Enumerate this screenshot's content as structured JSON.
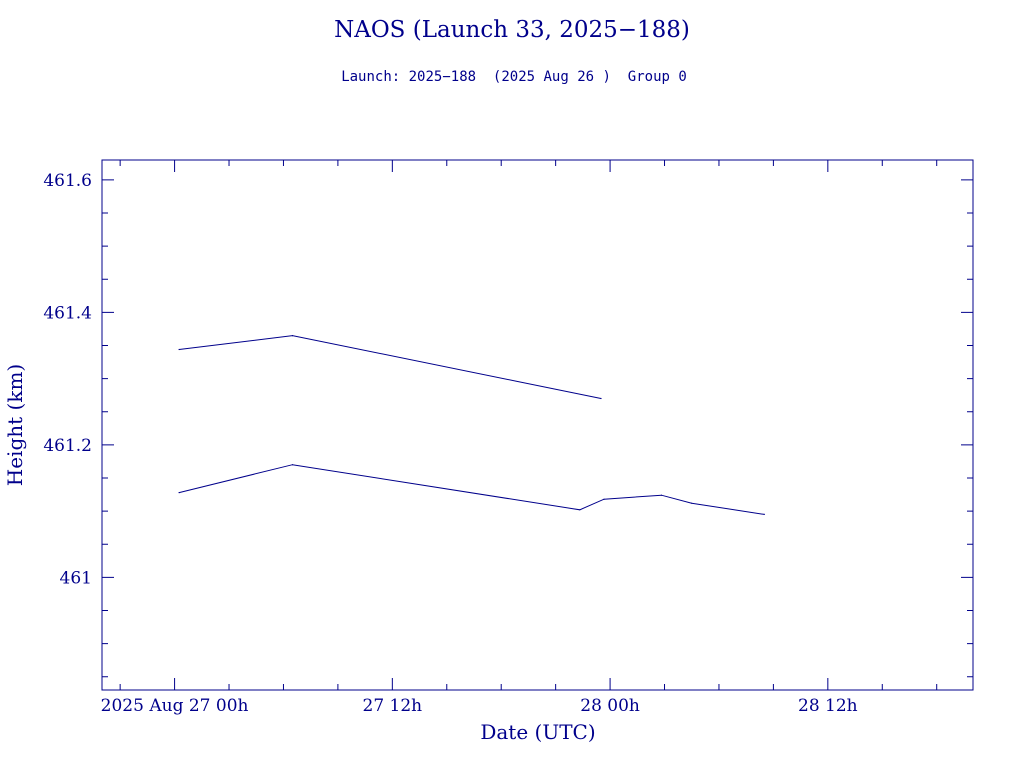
{
  "chart_data": {
    "type": "line",
    "title": "NAOS (Launch 33, 2025−188)",
    "subtitle": "Launch: 2025−188  (2025 Aug 26 )  Group 0",
    "xlabel": "Date (UTC)",
    "ylabel": "Height (km)",
    "x_unit": "UTC datetime",
    "xlim": [
      "2025-08-26T20:00",
      "2025-08-28T20:00"
    ],
    "ylim": [
      460.83,
      461.63
    ],
    "x_ticks": [
      {
        "label": "2025 Aug 27  00h",
        "at": "2025-08-27T00:00"
      },
      {
        "label": "27  12h",
        "at": "2025-08-27T12:00"
      },
      {
        "label": "28  00h",
        "at": "2025-08-28T00:00"
      },
      {
        "label": "28  12h",
        "at": "2025-08-28T12:00"
      }
    ],
    "y_ticks": [
      {
        "label": "461",
        "value": 461.0
      },
      {
        "label": "461.2",
        "value": 461.2
      },
      {
        "label": "461.4",
        "value": 461.4
      },
      {
        "label": "461.6",
        "value": 461.6
      }
    ],
    "grid": false,
    "series": [
      {
        "x": [
          "2025-08-27T00:15",
          "2025-08-27T06:30",
          "2025-08-27T23:30"
        ],
        "y": [
          461.344,
          461.365,
          461.27
        ]
      },
      {
        "x": [
          "2025-08-27T00:15",
          "2025-08-27T06:30",
          "2025-08-27T22:20",
          "2025-08-27T23:40",
          "2025-08-28T02:50",
          "2025-08-28T04:30",
          "2025-08-28T08:30"
        ],
        "y": [
          461.128,
          461.17,
          461.102,
          461.118,
          461.124,
          461.112,
          461.095
        ]
      }
    ],
    "colors": {
      "ink": "#00008b",
      "background": "#ffffff"
    }
  }
}
